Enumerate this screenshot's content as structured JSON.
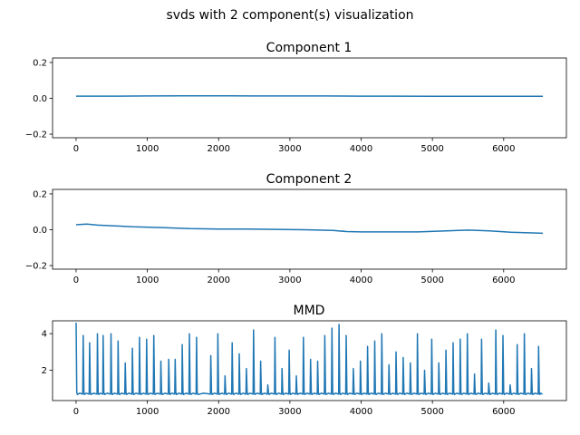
{
  "figure": {
    "suptitle": "svds with 2 component(s) visualization"
  },
  "chart_data": [
    {
      "type": "line",
      "title": "Component 1",
      "xlabel": "",
      "ylabel": "",
      "xlim": [
        -330,
        6880
      ],
      "ylim": [
        -0.22,
        0.225
      ],
      "xticks": [
        0,
        1000,
        2000,
        3000,
        4000,
        5000,
        6000
      ],
      "yticks": [
        -0.2,
        0.0,
        0.2
      ],
      "ytick_labels": [
        "−0.2",
        "0.0",
        "0.2"
      ],
      "grid": false,
      "color": "#1f77b4",
      "x": [
        0,
        500,
        1000,
        1500,
        2000,
        2500,
        3000,
        3500,
        4000,
        4500,
        5000,
        5500,
        6000,
        6550
      ],
      "values": [
        0.012,
        0.012,
        0.013,
        0.014,
        0.014,
        0.013,
        0.013,
        0.013,
        0.012,
        0.012,
        0.011,
        0.011,
        0.011,
        0.011
      ]
    },
    {
      "type": "line",
      "title": "Component 2",
      "xlabel": "",
      "ylabel": "",
      "xlim": [
        -330,
        6880
      ],
      "ylim": [
        -0.22,
        0.225
      ],
      "xticks": [
        0,
        1000,
        2000,
        3000,
        4000,
        5000,
        6000
      ],
      "yticks": [
        -0.2,
        0.0,
        0.2
      ],
      "ytick_labels": [
        "−0.2",
        "0.0",
        "0.2"
      ],
      "grid": false,
      "color": "#1f77b4",
      "x": [
        0,
        150,
        300,
        500,
        800,
        1200,
        1600,
        2000,
        2400,
        2800,
        3200,
        3600,
        3800,
        4000,
        4400,
        4800,
        5200,
        5500,
        5800,
        6100,
        6550
      ],
      "values": [
        0.028,
        0.032,
        0.026,
        0.022,
        0.016,
        0.012,
        0.006,
        0.004,
        0.004,
        0.002,
        0.0,
        -0.004,
        -0.01,
        -0.012,
        -0.012,
        -0.012,
        -0.006,
        -0.002,
        -0.006,
        -0.014,
        -0.02
      ]
    },
    {
      "type": "line",
      "title": "MMD",
      "xlabel": "",
      "ylabel": "",
      "xlim": [
        -330,
        6880
      ],
      "ylim": [
        0.35,
        4.7
      ],
      "xticks": [
        0,
        1000,
        2000,
        3000,
        4000,
        5000,
        6000
      ],
      "yticks": [
        2,
        4
      ],
      "ytick_labels": [
        "2",
        "4"
      ],
      "grid": false,
      "color": "#1f77b4",
      "baseline": 0.7,
      "spikes": {
        "x": [
          0,
          100,
          190,
          300,
          380,
          490,
          590,
          690,
          790,
          890,
          990,
          1090,
          1190,
          1300,
          1390,
          1490,
          1590,
          1690,
          1890,
          1990,
          2090,
          2190,
          2290,
          2390,
          2490,
          2590,
          2690,
          2790,
          2890,
          2990,
          3090,
          3190,
          3290,
          3390,
          3490,
          3590,
          3690,
          3790,
          3890,
          3990,
          4090,
          4190,
          4290,
          4390,
          4490,
          4590,
          4690,
          4790,
          4890,
          4990,
          5090,
          5190,
          5290,
          5390,
          5490,
          5590,
          5690,
          5790,
          5890,
          5990,
          6090,
          6190,
          6290,
          6390,
          6490
        ],
        "values": [
          4.6,
          3.9,
          3.5,
          4.0,
          3.9,
          4.0,
          3.6,
          2.4,
          3.2,
          3.8,
          3.7,
          3.9,
          2.5,
          2.6,
          2.6,
          3.4,
          4.0,
          3.8,
          2.8,
          4.0,
          1.7,
          3.5,
          2.9,
          2.1,
          4.2,
          2.5,
          1.2,
          3.8,
          2.1,
          3.1,
          1.7,
          3.8,
          2.6,
          2.5,
          3.9,
          4.3,
          4.5,
          3.9,
          2.1,
          2.5,
          3.3,
          3.6,
          4.0,
          2.3,
          3.0,
          2.7,
          2.4,
          4.0,
          2.0,
          3.7,
          2.4,
          3.1,
          3.5,
          3.7,
          4.0,
          1.8,
          3.7,
          1.3,
          4.2,
          3.9,
          1.2,
          3.4,
          4.0,
          2.1,
          3.3
        ]
      }
    }
  ]
}
